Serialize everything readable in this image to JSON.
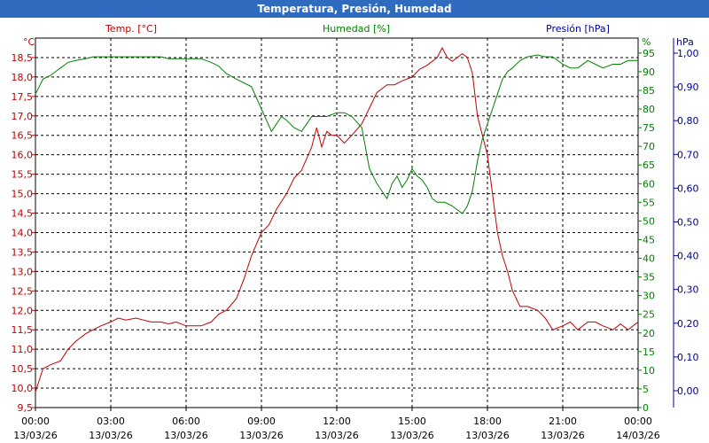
{
  "title": "Temperatura, Presión, Humedad",
  "colors": {
    "titlebar": "#2f6bbf",
    "temperature": "#c00000",
    "humidity": "#008000",
    "pressure": "#000099",
    "grid": "#000000"
  },
  "chart_data": {
    "type": "line",
    "title": "Temperatura, Presión, Humedad",
    "grid": true,
    "x_ticks": [
      {
        "time": "00:00",
        "date": "13/03/26"
      },
      {
        "time": "03:00",
        "date": "13/03/26"
      },
      {
        "time": "06:00",
        "date": "13/03/26"
      },
      {
        "time": "09:00",
        "date": "13/03/26"
      },
      {
        "time": "12:00",
        "date": "13/03/26"
      },
      {
        "time": "15:00",
        "date": "13/03/26"
      },
      {
        "time": "18:00",
        "date": "13/03/26"
      },
      {
        "time": "21:00",
        "date": "13/03/26"
      },
      {
        "time": "00:00",
        "date": "14/03/26"
      }
    ],
    "xlim": [
      0,
      24
    ],
    "axes": {
      "temperature": {
        "label": "Temp. [°C]",
        "unit": "°C",
        "ylim": [
          9.5,
          19.0
        ],
        "ticks": [
          "9,5",
          "10,0",
          "10,5",
          "11,0",
          "11,5",
          "12,0",
          "12,5",
          "13,0",
          "13,5",
          "14,0",
          "14,5",
          "15,0",
          "15,5",
          "16,0",
          "16,5",
          "17,0",
          "17,5",
          "18,0",
          "18,5"
        ]
      },
      "humidity": {
        "label": "Humedad [%]",
        "unit": "%",
        "ylim": [
          0,
          99
        ],
        "ticks": [
          "0",
          "5",
          "10",
          "15",
          "20",
          "25",
          "30",
          "35",
          "40",
          "45",
          "50",
          "55",
          "60",
          "65",
          "70",
          "75",
          "80",
          "85",
          "90",
          "95"
        ]
      },
      "pressure": {
        "label": "Presión [hPa]",
        "unit": "hPa",
        "ticks": [
          "0,00",
          "0,10",
          "0,20",
          "0,30",
          "0,40",
          "0,50",
          "0,60",
          "0,70",
          "0,80",
          "0,90",
          "1,00"
        ]
      }
    },
    "series": [
      {
        "name": "Temp. [°C]",
        "axis": "temperature",
        "x": [
          0,
          0.3,
          0.6,
          1,
          1.3,
          1.6,
          2,
          2.3,
          2.6,
          3,
          3.3,
          3.6,
          4,
          4.3,
          4.6,
          5,
          5.3,
          5.6,
          6,
          6.3,
          6.6,
          7,
          7.3,
          7.6,
          8,
          8.3,
          8.6,
          9,
          9.3,
          9.6,
          10,
          10.3,
          10.6,
          11,
          11.2,
          11.4,
          11.6,
          11.8,
          12,
          12.3,
          12.6,
          13,
          13.3,
          13.6,
          14,
          14.3,
          14.6,
          15,
          15.3,
          15.6,
          16,
          16.2,
          16.4,
          16.6,
          16.8,
          17,
          17.2,
          17.4,
          17.6,
          17.8,
          18,
          18.2,
          18.4,
          18.6,
          18.8,
          19,
          19.3,
          19.6,
          20,
          20.3,
          20.6,
          21,
          21.3,
          21.6,
          22,
          22.3,
          22.6,
          23,
          23.3,
          23.6,
          24
        ],
        "y": [
          9.9,
          10.5,
          10.6,
          10.7,
          11.0,
          11.2,
          11.4,
          11.5,
          11.6,
          11.7,
          11.8,
          11.75,
          11.8,
          11.75,
          11.7,
          11.7,
          11.65,
          11.7,
          11.6,
          11.6,
          11.6,
          11.7,
          11.9,
          12.0,
          12.3,
          12.8,
          13.4,
          14.0,
          14.2,
          14.6,
          15.0,
          15.4,
          15.6,
          16.2,
          16.7,
          16.2,
          16.6,
          16.5,
          16.5,
          16.3,
          16.5,
          16.8,
          17.2,
          17.6,
          17.8,
          17.8,
          17.9,
          18.0,
          18.2,
          18.3,
          18.5,
          18.75,
          18.5,
          18.4,
          18.5,
          18.6,
          18.5,
          18.1,
          17.0,
          16.5,
          16.0,
          15.0,
          14.0,
          13.4,
          13.0,
          12.5,
          12.1,
          12.1,
          12.0,
          11.8,
          11.5,
          11.6,
          11.7,
          11.5,
          11.7,
          11.7,
          11.6,
          11.5,
          11.65,
          11.5,
          11.7
        ]
      },
      {
        "name": "Humedad [%]",
        "axis": "humidity",
        "x": [
          0,
          0.3,
          0.6,
          1,
          1.3,
          1.6,
          2,
          2.3,
          2.6,
          3,
          3.3,
          3.6,
          4,
          4.3,
          4.6,
          5,
          5.3,
          5.6,
          6,
          6.3,
          6.6,
          7,
          7.3,
          7.6,
          8,
          8.3,
          8.6,
          9,
          9.2,
          9.4,
          9.6,
          9.8,
          10,
          10.3,
          10.6,
          11,
          11.3,
          11.6,
          12,
          12.3,
          12.6,
          13,
          13.3,
          13.6,
          14,
          14.2,
          14.4,
          14.6,
          14.8,
          15,
          15.2,
          15.4,
          15.6,
          15.8,
          16,
          16.3,
          16.6,
          17,
          17.2,
          17.4,
          17.6,
          17.8,
          18,
          18.2,
          18.4,
          18.6,
          18.8,
          19,
          19.3,
          19.6,
          20,
          20.3,
          20.6,
          21,
          21.3,
          21.6,
          22,
          22.3,
          22.6,
          23,
          23.3,
          23.6,
          24
        ],
        "y": [
          84,
          88,
          89,
          91,
          92.5,
          93,
          93.5,
          94,
          94,
          94,
          94,
          94,
          94,
          94,
          94,
          94,
          93.5,
          93.5,
          93.5,
          93.5,
          93.5,
          92.5,
          91.5,
          89.5,
          88,
          87,
          86,
          80,
          77,
          74,
          76,
          78,
          77,
          75,
          74,
          78,
          78,
          78,
          79,
          79,
          78,
          75,
          64,
          60,
          56,
          60,
          62,
          59,
          61,
          64,
          62,
          61,
          59,
          56,
          55,
          55,
          54,
          52,
          54,
          58,
          66,
          72,
          76,
          80,
          84,
          88,
          90,
          91,
          93,
          94,
          94.5,
          94,
          94,
          92,
          91,
          91,
          93,
          92,
          91,
          92,
          92,
          93,
          93
        ]
      }
    ]
  }
}
